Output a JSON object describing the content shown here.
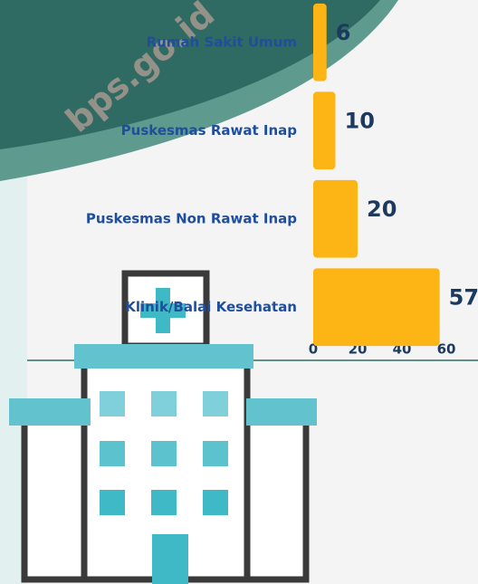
{
  "chart_data": {
    "type": "bar",
    "orientation": "horizontal",
    "categories": [
      "Rumah Sakit Umum",
      "Puskesmas Rawat Inap",
      "Puskesmas Non Rawat Inap",
      "Klinik/Balai Kesehatan"
    ],
    "values": [
      6,
      10,
      20,
      57
    ],
    "color": "#fdb515",
    "xlim": [
      0,
      60
    ],
    "xticks": [
      0,
      20,
      40,
      60
    ],
    "grid": false
  },
  "watermark": "bps.go.id"
}
